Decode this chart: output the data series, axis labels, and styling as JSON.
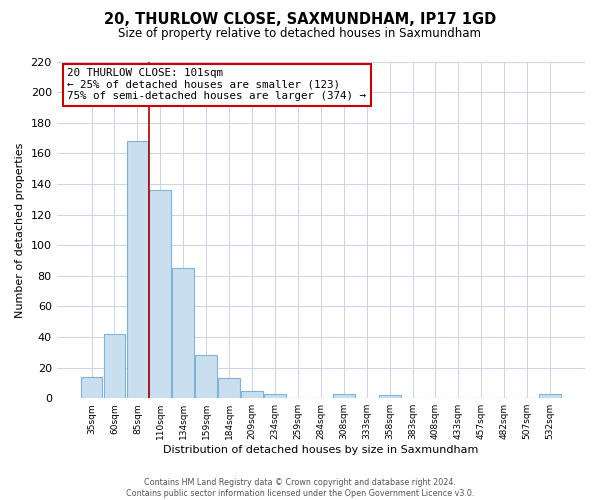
{
  "title": "20, THURLOW CLOSE, SAXMUNDHAM, IP17 1GD",
  "subtitle": "Size of property relative to detached houses in Saxmundham",
  "bar_values": [
    14,
    42,
    168,
    136,
    85,
    28,
    13,
    5,
    3,
    0,
    0,
    3,
    0,
    2,
    0,
    0,
    0,
    0,
    0,
    0,
    3
  ],
  "bar_labels": [
    "35sqm",
    "60sqm",
    "85sqm",
    "110sqm",
    "134sqm",
    "159sqm",
    "184sqm",
    "209sqm",
    "234sqm",
    "259sqm",
    "284sqm",
    "308sqm",
    "333sqm",
    "358sqm",
    "383sqm",
    "408sqm",
    "433sqm",
    "457sqm",
    "482sqm",
    "507sqm",
    "532sqm"
  ],
  "xlabel": "Distribution of detached houses by size in Saxmundham",
  "ylabel": "Number of detached properties",
  "ylim": [
    0,
    220
  ],
  "yticks": [
    0,
    20,
    40,
    60,
    80,
    100,
    120,
    140,
    160,
    180,
    200,
    220
  ],
  "bar_color": "#c9dff0",
  "bar_edge_color": "#7db4d8",
  "vline_x_idx": 2.5,
  "vline_color": "#aa0000",
  "annotation_title": "20 THURLOW CLOSE: 101sqm",
  "annotation_line1": "← 25% of detached houses are smaller (123)",
  "annotation_line2": "75% of semi-detached houses are larger (374) →",
  "annotation_box_color": "#ffffff",
  "annotation_box_edge": "#cc0000",
  "footer1": "Contains HM Land Registry data © Crown copyright and database right 2024.",
  "footer2": "Contains public sector information licensed under the Open Government Licence v3.0.",
  "background_color": "#ffffff",
  "grid_color": "#c8d4e8"
}
